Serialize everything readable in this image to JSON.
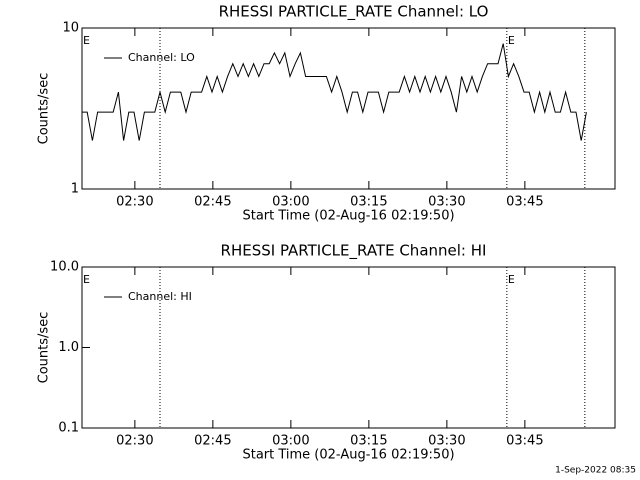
{
  "chart_data": [
    {
      "type": "line",
      "title": "RHESSI PARTICLE_RATE Channel: LO",
      "xlabel": "Start Time (02-Aug-16 02:19:50)",
      "ylabel": "Counts/sec",
      "x": [
        0,
        1,
        2,
        3,
        4,
        5,
        6,
        7,
        8,
        9,
        10,
        11,
        12,
        13,
        14,
        15,
        16,
        17,
        18,
        19,
        20,
        21,
        22,
        23,
        24,
        25,
        26,
        27,
        28,
        29,
        30,
        31,
        32,
        33,
        34,
        35,
        36,
        37,
        38,
        39,
        40,
        41,
        42,
        43,
        44,
        45,
        46,
        47,
        48,
        49,
        50,
        51,
        52,
        53,
        54,
        55,
        56,
        57,
        58,
        59,
        60,
        61,
        62,
        63,
        64,
        65,
        66,
        67,
        68,
        69,
        70,
        71,
        72,
        73,
        74,
        75,
        76,
        77,
        78,
        79,
        80,
        81,
        82,
        83,
        84,
        85,
        86,
        87,
        88,
        89,
        90,
        91,
        92,
        93,
        94,
        95,
        96,
        97
      ],
      "series": [
        {
          "name": "Channel: LO",
          "color": "#000000",
          "values": [
            3,
            3,
            2,
            3,
            3,
            3,
            3,
            4,
            2,
            3,
            3,
            2,
            3,
            3,
            3,
            4,
            3,
            4,
            4,
            4,
            3,
            4,
            4,
            4,
            5,
            4,
            5,
            4,
            5,
            6,
            5,
            6,
            5,
            6,
            5,
            6,
            6,
            7,
            6,
            7,
            5,
            6,
            7,
            5,
            5,
            5,
            5,
            5,
            4,
            5,
            4,
            3,
            4,
            4,
            3,
            4,
            4,
            4,
            3,
            4,
            4,
            4,
            5,
            4,
            5,
            4,
            5,
            4,
            5,
            4,
            5,
            4,
            3,
            5,
            4,
            5,
            4,
            5,
            6,
            6,
            6,
            8,
            5,
            6,
            5,
            4,
            4,
            3,
            4,
            3,
            4,
            3,
            3,
            4,
            3,
            3,
            2,
            3
          ]
        }
      ],
      "xlim": [
        0,
        102.5
      ],
      "xticks": [
        {
          "value": 10.1667,
          "label": "02:30"
        },
        {
          "value": 25.1667,
          "label": "02:45"
        },
        {
          "value": 40.1667,
          "label": "03:00"
        },
        {
          "value": 55.1667,
          "label": "03:15"
        },
        {
          "value": 70.1667,
          "label": "03:30"
        },
        {
          "value": 85.1667,
          "label": "03:45"
        }
      ],
      "ylim": [
        1,
        10
      ],
      "yticks": [
        1,
        10
      ],
      "log_y": true,
      "vlines": [
        15,
        81.7,
        96.7
      ],
      "annotations": [
        {
          "text": "E",
          "x": 0
        },
        {
          "text": "E",
          "x": 81.7
        }
      ]
    },
    {
      "type": "line",
      "title": "RHESSI PARTICLE_RATE Channel: HI",
      "xlabel": "Start Time (02-Aug-16 02:19:50)",
      "ylabel": "Counts/sec",
      "x": [],
      "series": [
        {
          "name": "Channel: HI",
          "color": "#000000",
          "values": []
        }
      ],
      "xlim": [
        0,
        102.5
      ],
      "xticks": [
        {
          "value": 10.1667,
          "label": "02:30"
        },
        {
          "value": 25.1667,
          "label": "02:45"
        },
        {
          "value": 40.1667,
          "label": "03:00"
        },
        {
          "value": 55.1667,
          "label": "03:15"
        },
        {
          "value": 70.1667,
          "label": "03:30"
        },
        {
          "value": 85.1667,
          "label": "03:45"
        }
      ],
      "ylim": [
        0.1,
        10
      ],
      "yticks": [
        0.1,
        {
          "value": 1,
          "label": "1.0"
        },
        {
          "value": 10,
          "label": "10.0"
        }
      ],
      "log_y": true,
      "vlines": [
        15,
        81.7,
        96.7
      ],
      "annotations": [
        {
          "text": "E",
          "x": 0
        },
        {
          "text": "E",
          "x": 81.7
        }
      ]
    }
  ],
  "footer": "1-Sep-2022 08:35"
}
